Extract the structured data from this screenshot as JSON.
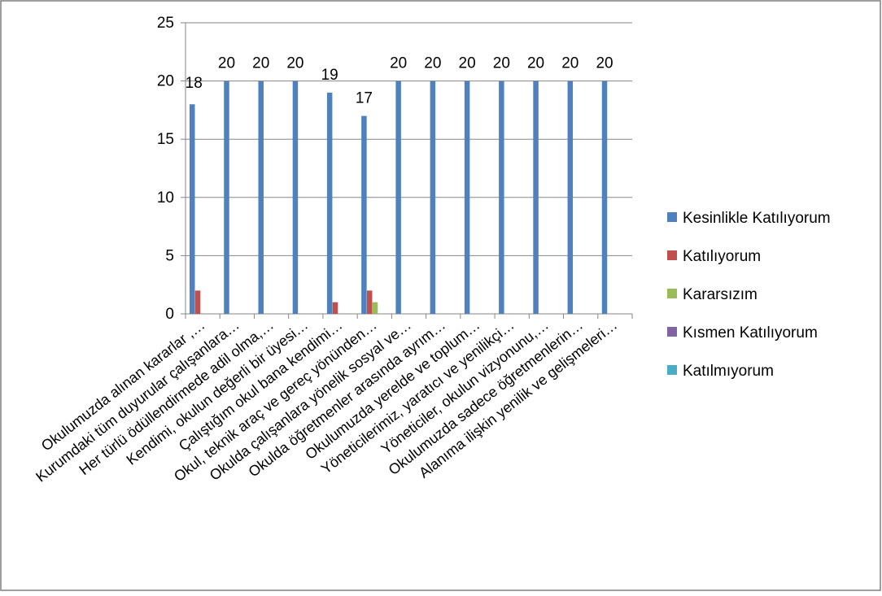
{
  "chart_data": {
    "type": "bar",
    "title": "",
    "xlabel": "",
    "ylabel": "",
    "ylim": [
      0,
      25
    ],
    "yticks": [
      0,
      5,
      10,
      15,
      20,
      25
    ],
    "grid": "horizontal",
    "legend_position": "right",
    "categories": [
      "Okulumuzda alınan kararlar ,…",
      "Kurumdaki tüm duyurular çalışanlara…",
      "Her türlü ödüllendirmede adil olma,…",
      "Kendimi, okulun değerli bir üyesi…",
      "Çalıştığım okul bana kendimi…",
      "Okul, teknik araç ve gereç yönünden…",
      "Okulda çalışanlara yönelik sosyal ve…",
      "Okulda öğretmenler arasında ayrım…",
      "Okulumuzda yerelde ve toplum…",
      "Yöneticilerimiz, yaratıcı ve yenilikçi…",
      "Yöneticiler, okulun vizyonunu,…",
      "Okulumuzda sadece öğretmenlerin…",
      "Alanıma ilişkin yenilik ve gelişmeleri…"
    ],
    "series": [
      {
        "name": "Kesinlikle Katılıyorum",
        "color": "#4f81bd",
        "values": [
          18,
          20,
          20,
          20,
          19,
          17,
          20,
          20,
          20,
          20,
          20,
          20,
          20
        ]
      },
      {
        "name": "Katılıyorum",
        "color": "#c0504d",
        "values": [
          2,
          0,
          0,
          0,
          1,
          2,
          0,
          0,
          0,
          0,
          0,
          0,
          0
        ]
      },
      {
        "name": "Kararsızım",
        "color": "#9bbb59",
        "values": [
          0,
          0,
          0,
          0,
          0,
          1,
          0,
          0,
          0,
          0,
          0,
          0,
          0
        ]
      },
      {
        "name": "Kısmen Katılıyorum",
        "color": "#8064a2",
        "values": [
          0,
          0,
          0,
          0,
          0,
          0,
          0,
          0,
          0,
          0,
          0,
          0,
          0
        ]
      },
      {
        "name": "Katılmıyorum",
        "color": "#4bacc6",
        "values": [
          0,
          0,
          0,
          0,
          0,
          0,
          0,
          0,
          0,
          0,
          0,
          0,
          0
        ]
      }
    ],
    "data_labels": [
      {
        "series": 0,
        "category": 0,
        "text": "18"
      },
      {
        "series": 0,
        "category": 1,
        "text": "20"
      },
      {
        "series": 0,
        "category": 2,
        "text": "20"
      },
      {
        "series": 0,
        "category": 3,
        "text": "20"
      },
      {
        "series": 0,
        "category": 4,
        "text": "19"
      },
      {
        "series": 0,
        "category": 5,
        "text": "17"
      },
      {
        "series": 0,
        "category": 6,
        "text": "20"
      },
      {
        "series": 0,
        "category": 7,
        "text": "20"
      },
      {
        "series": 0,
        "category": 8,
        "text": "20"
      },
      {
        "series": 0,
        "category": 9,
        "text": "20"
      },
      {
        "series": 0,
        "category": 10,
        "text": "20"
      },
      {
        "series": 0,
        "category": 11,
        "text": "20"
      },
      {
        "series": 0,
        "category": 12,
        "text": "20"
      }
    ]
  }
}
